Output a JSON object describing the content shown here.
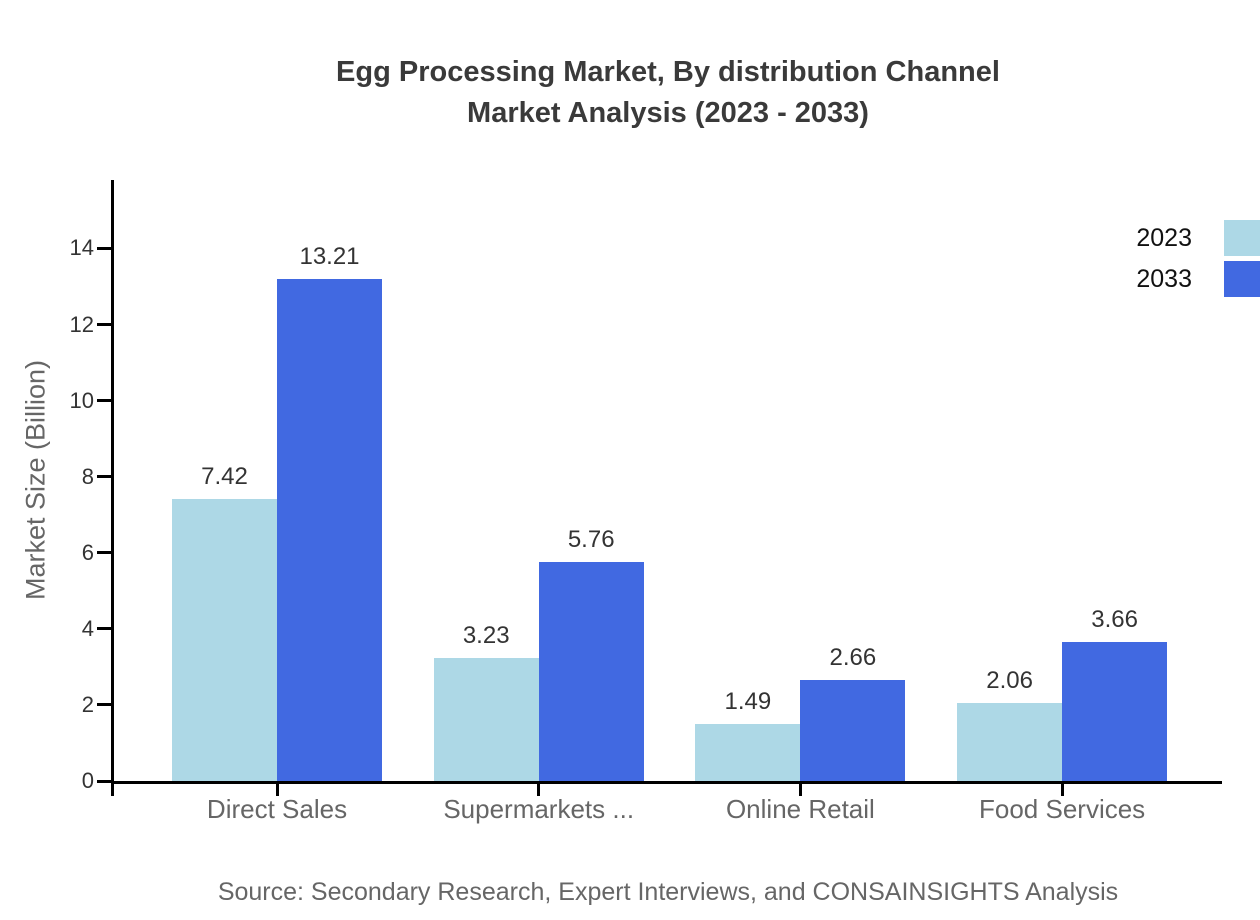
{
  "header": {
    "title_line1": "Egg Processing Market, By distribution Channel",
    "title_line2": "Market Analysis (2023 - 2033)"
  },
  "source": "Source: Secondary Research, Expert Interviews, and CONSAINSIGHTS Analysis",
  "colors": {
    "series_2023": "#ADD8E6",
    "series_2033": "#4169E1",
    "axis": "#000000",
    "title_text": "#3A3A3A",
    "value_label_text": "#333333",
    "muted_text": "#666666"
  },
  "chart_data": {
    "type": "bar",
    "title": "Egg Processing Market, By distribution Channel Market Analysis (2023 - 2033)",
    "categories": [
      "Direct Sales",
      "Supermarkets ...",
      "Online Retail",
      "Food Services"
    ],
    "series": [
      {
        "name": "2023",
        "color": "#ADD8E6",
        "values": [
          7.42,
          3.23,
          1.49,
          2.06
        ]
      },
      {
        "name": "2033",
        "color": "#4169E1",
        "values": [
          13.21,
          5.76,
          2.66,
          3.66
        ]
      }
    ],
    "xlabel": "",
    "ylabel": "Market Size (Billion)",
    "ylim": [
      0,
      15.8
    ],
    "yticks": [
      0,
      2,
      4,
      6,
      8,
      10,
      12,
      14
    ],
    "grid": false,
    "legend_position": "top-right",
    "value_labels": true
  }
}
